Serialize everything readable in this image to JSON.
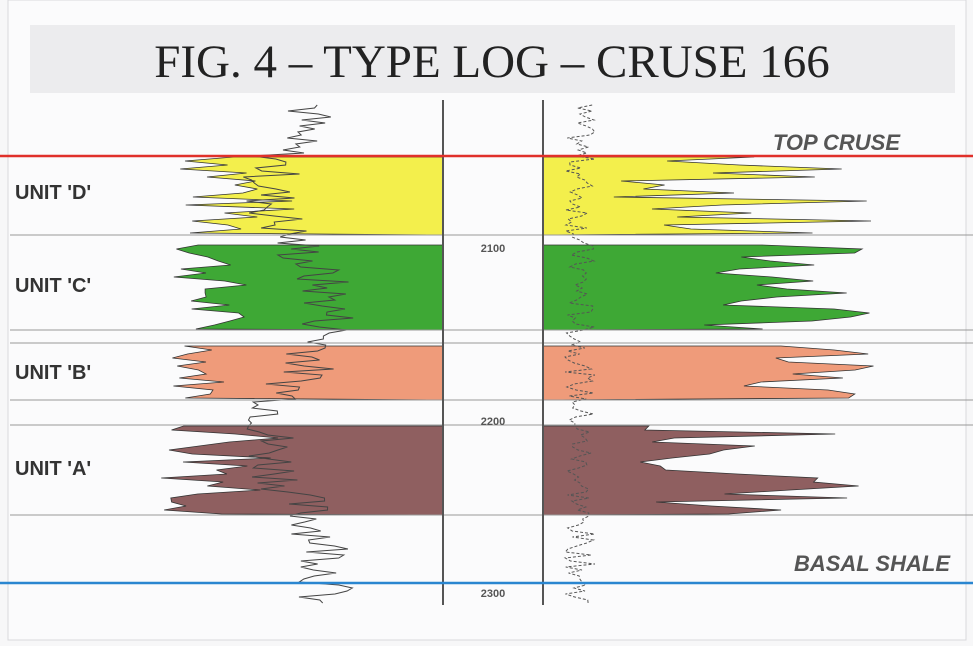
{
  "header": {
    "title": "FIG. 4 – TYPE LOG – CRUSE 166"
  },
  "markers": {
    "top": "TOP CRUSE",
    "base": "BASAL SHALE"
  },
  "units": [
    {
      "label": "UNIT 'D'"
    },
    {
      "label": "UNIT 'C'"
    },
    {
      "label": "UNIT 'B'"
    },
    {
      "label": "UNIT 'A'"
    }
  ],
  "depths": [
    "2100",
    "2200",
    "2300"
  ]
}
